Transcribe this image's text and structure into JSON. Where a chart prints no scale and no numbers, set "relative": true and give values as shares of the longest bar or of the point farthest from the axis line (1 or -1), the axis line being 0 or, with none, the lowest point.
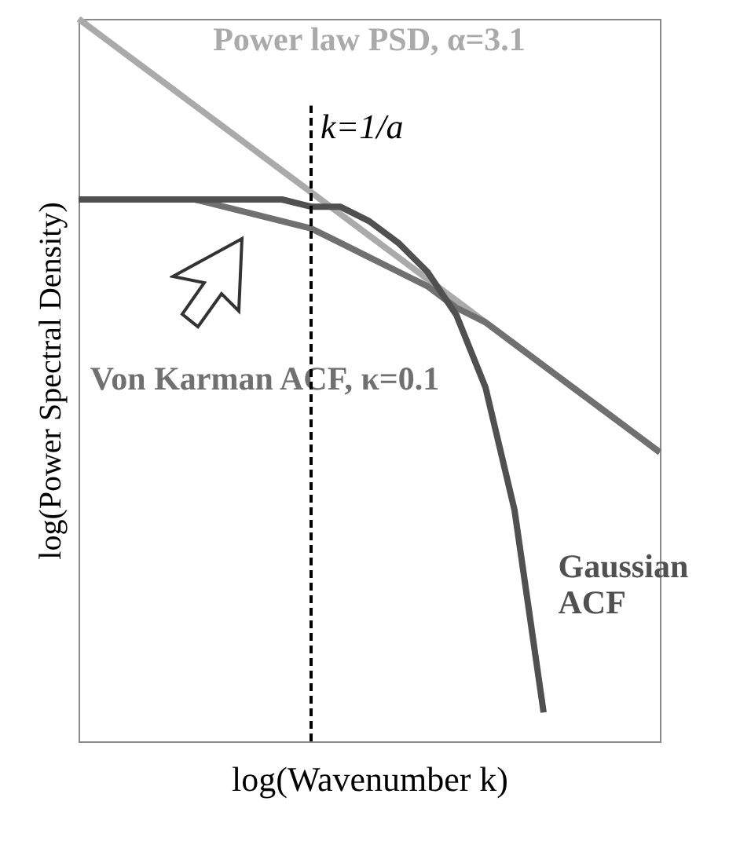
{
  "chart_data": {
    "type": "line",
    "relative": true,
    "xlabel": "log(Wavenumber k)",
    "ylabel": "log(Power Spectral Density)",
    "tick_labels": false,
    "annotations": [
      "k=1/a"
    ],
    "categories": [
      null,
      null,
      null,
      null,
      null,
      null,
      null,
      null,
      null,
      null,
      null,
      null,
      null,
      null,
      null,
      null,
      null,
      null,
      null,
      null,
      null
    ],
    "series": [
      {
        "name": "Power law PSD, α=3.1",
        "color": "#aaaaaa",
        "values": [
          1.0,
          0.97,
          0.94,
          0.91,
          0.88,
          0.85,
          0.82,
          0.79,
          0.76,
          0.73,
          0.7,
          0.67,
          0.64,
          0.61,
          0.58,
          0.55,
          0.52,
          0.49,
          0.46,
          0.43,
          0.4
        ]
      },
      {
        "name": "Von Karman ACF, κ=0.1",
        "color": "#707070",
        "values": [
          0.75,
          0.75,
          0.75,
          0.75,
          0.75,
          0.74,
          0.73,
          0.72,
          0.71,
          0.69,
          0.67,
          0.65,
          0.63,
          0.6,
          0.58,
          0.55,
          0.52,
          0.49,
          0.46,
          0.43,
          0.4
        ]
      },
      {
        "name": "Gaussian ACF",
        "color": "#505050",
        "values": [
          0.75,
          0.75,
          0.75,
          0.75,
          0.75,
          0.75,
          0.75,
          0.75,
          0.74,
          0.74,
          0.72,
          0.69,
          0.65,
          0.59,
          0.49,
          0.32,
          0.04,
          null,
          null,
          null,
          null
        ]
      }
    ]
  }
}
